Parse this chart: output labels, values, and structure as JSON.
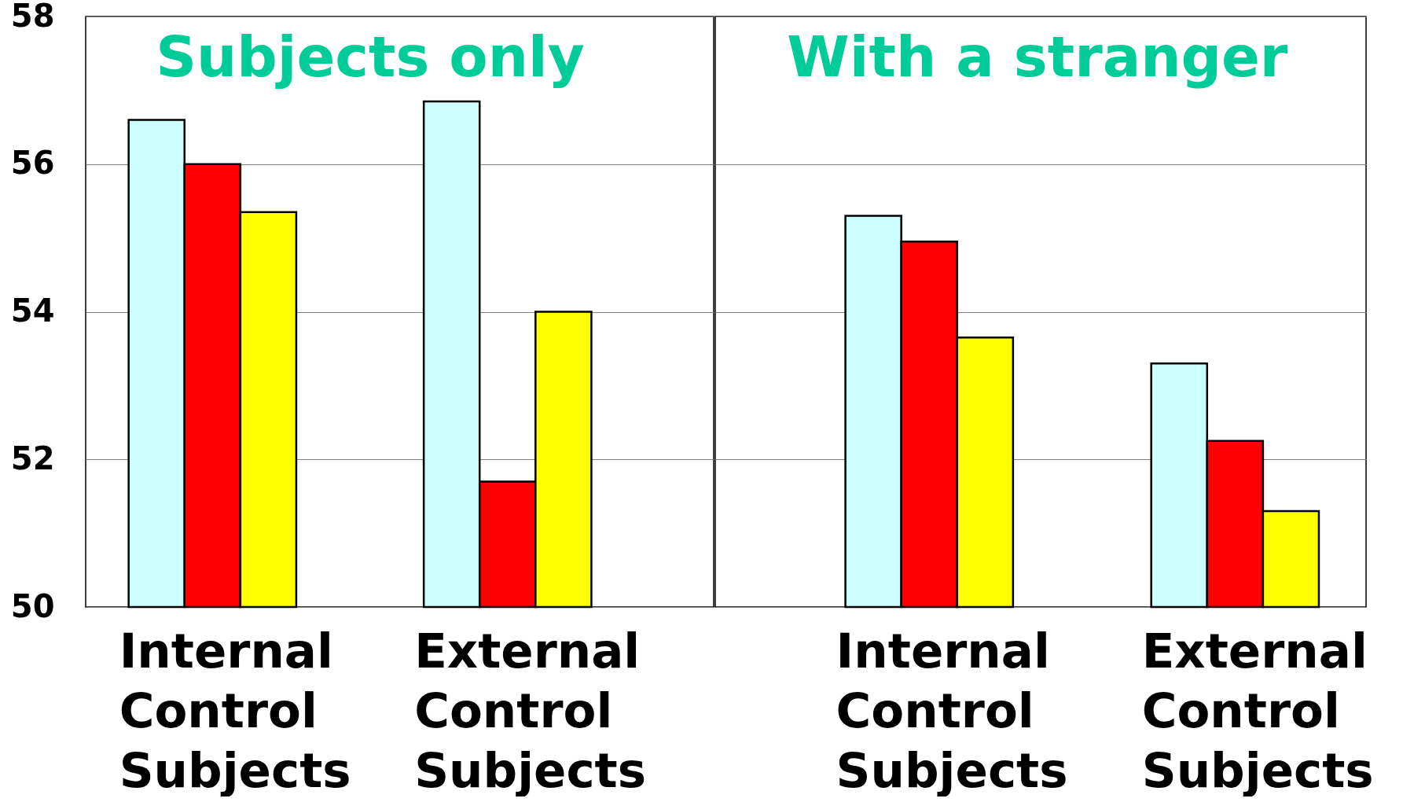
{
  "chart_data": [
    {
      "type": "bar",
      "title": "Subjects only",
      "categories": [
        "Internal Control Subjects",
        "External Control Subjects"
      ],
      "series": [
        {
          "color": "#ccffff",
          "values": [
            56.6,
            56.85
          ]
        },
        {
          "color": "#ff0000",
          "values": [
            56.0,
            51.7
          ]
        },
        {
          "color": "#ffff00",
          "values": [
            55.35,
            54.0
          ]
        }
      ],
      "ylim": [
        50,
        58
      ],
      "yticks": [
        50,
        52,
        54,
        56,
        58
      ],
      "grid": "y"
    },
    {
      "type": "bar",
      "title": "With a stranger",
      "categories": [
        "Internal Control Subjects",
        "External Control Subjects"
      ],
      "series": [
        {
          "color": "#ccffff",
          "values": [
            55.3,
            53.3
          ]
        },
        {
          "color": "#ff0000",
          "values": [
            54.95,
            52.25
          ]
        },
        {
          "color": "#ffff00",
          "values": [
            53.65,
            51.3
          ]
        }
      ],
      "ylim": [
        50,
        58
      ],
      "yticks": [
        50,
        52,
        54,
        56,
        58
      ],
      "grid": "y",
      "tick_labels": "x"
    }
  ]
}
